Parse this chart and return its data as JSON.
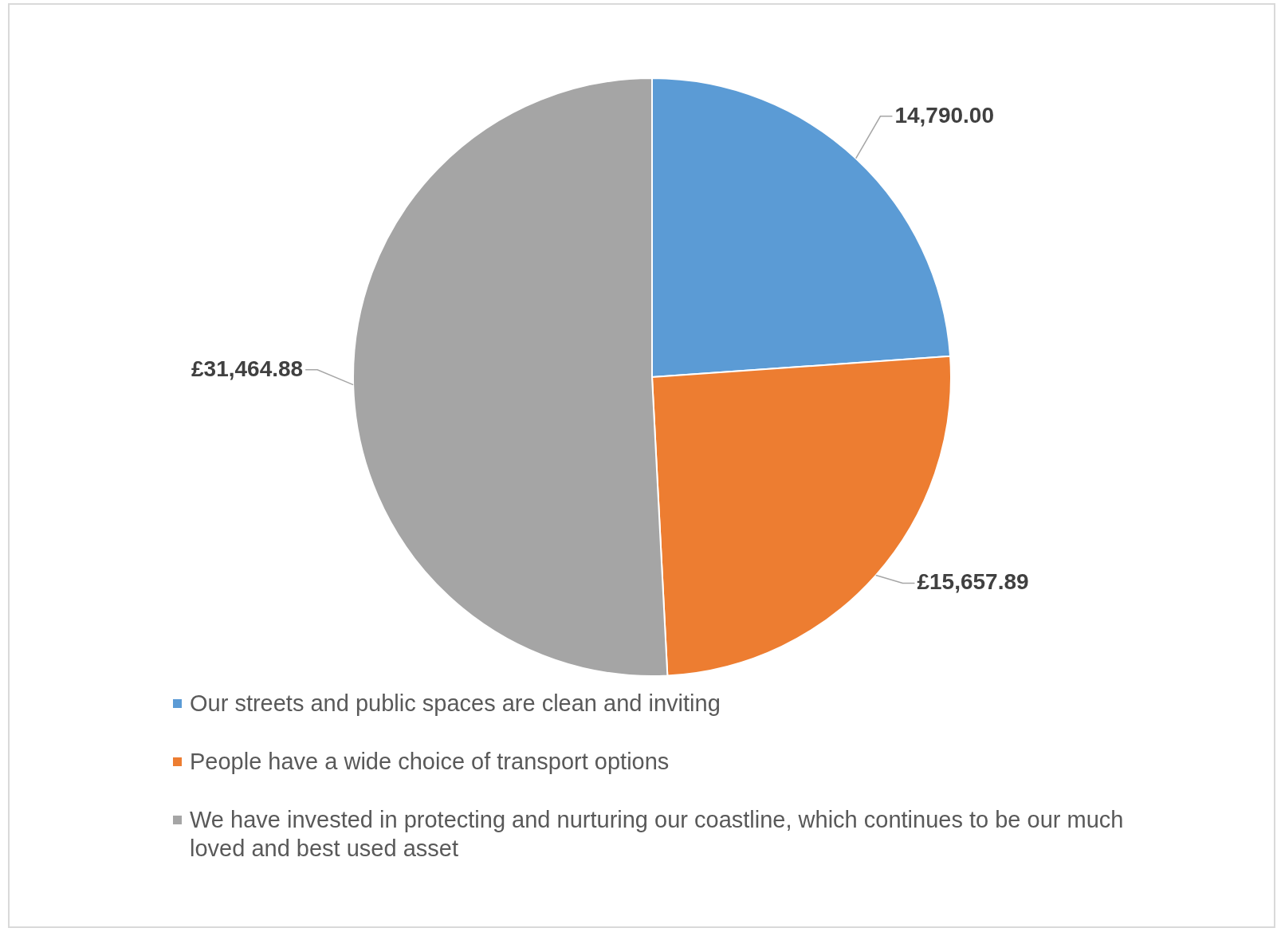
{
  "chart_data": {
    "type": "pie",
    "categories": [
      "Our streets and public spaces are clean and inviting",
      "People have a wide choice of transport options",
      "We have invested in protecting and nurturing our coastline, which continues to be our much loved and best used asset"
    ],
    "values": [
      14790,
      15657.89,
      31464.88
    ],
    "colors": [
      "#5b9bd5",
      "#ed7d31",
      "#a5a5a5"
    ],
    "value_labels": [
      "14,790.00",
      "£15,657.89",
      "£31,464.88"
    ],
    "legend": "bottom"
  }
}
